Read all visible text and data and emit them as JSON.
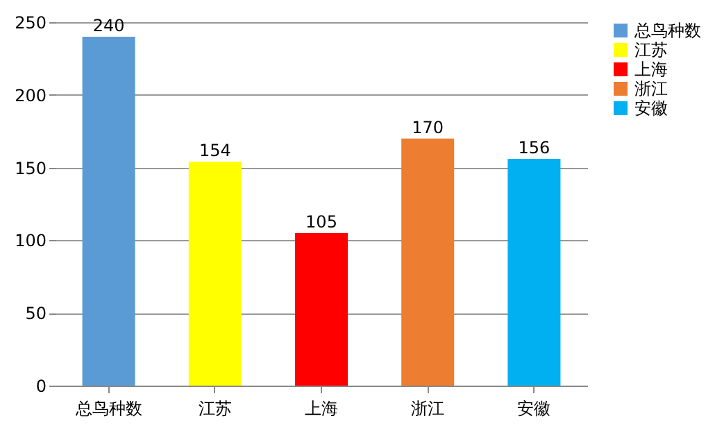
{
  "chart_data": {
    "type": "bar",
    "categories": [
      "总鸟种数",
      "江苏",
      "上海",
      "浙江",
      "安徽"
    ],
    "series": [
      {
        "name": "总鸟种数",
        "color": "#5b9bd5",
        "values": [
          240,
          null,
          null,
          null,
          null
        ]
      },
      {
        "name": "江苏",
        "color": "#ffff00",
        "values": [
          null,
          154,
          null,
          null,
          null
        ]
      },
      {
        "name": "上海",
        "color": "#ff0000",
        "values": [
          null,
          null,
          105,
          null,
          null
        ]
      },
      {
        "name": "浙江",
        "color": "#ed7d31",
        "values": [
          null,
          null,
          null,
          170,
          null
        ]
      },
      {
        "name": "安徽",
        "color": "#00b0f0",
        "values": [
          null,
          null,
          null,
          null,
          156
        ]
      }
    ],
    "ylim": [
      0,
      250
    ],
    "yticks": [
      0,
      50,
      100,
      150,
      200,
      250
    ],
    "grid": "y",
    "legend": "right",
    "data_labels": true
  }
}
